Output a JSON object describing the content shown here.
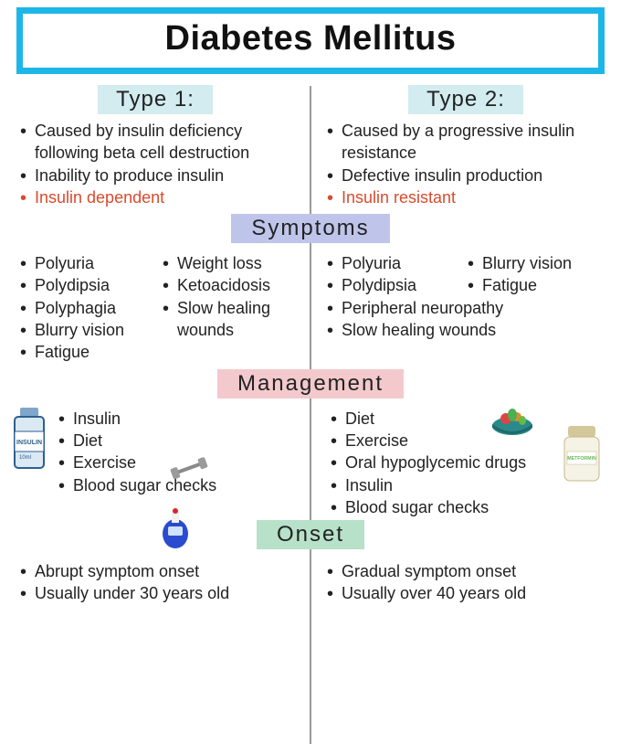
{
  "colors": {
    "title_border": "#1cb6e8",
    "title_text": "#111111",
    "divider": "#9a9a9a",
    "type_badge_bg": "#d2ecef",
    "symptoms_badge_bg": "#bfc5ea",
    "management_badge_bg": "#f3c9cd",
    "onset_badge_bg": "#b7e1c8",
    "badge_text": "#222222",
    "body_text": "#222222",
    "highlight_text": "#d94b2e"
  },
  "title": "Diabetes Mellitus",
  "type1_label": "Type 1:",
  "type2_label": "Type 2:",
  "section_symptoms": "Symptoms",
  "section_management": "Management",
  "section_onset": "Onset",
  "causes": {
    "type1": [
      {
        "text": "Caused by insulin deficiency following beta cell destruction",
        "hl": false
      },
      {
        "text": "Inability to produce insulin",
        "hl": false
      },
      {
        "text": "Insulin dependent",
        "hl": true
      }
    ],
    "type2": [
      {
        "text": "Caused by a progressive insulin resistance",
        "hl": false
      },
      {
        "text": "Defective insulin production",
        "hl": false
      },
      {
        "text": "Insulin resistant",
        "hl": true
      }
    ]
  },
  "symptoms": {
    "type1_a": [
      "Polyuria",
      "Polydipsia",
      "Polyphagia",
      "Blurry vision",
      "Fatigue"
    ],
    "type1_b": [
      "Weight loss",
      "Ketoacidosis",
      "Slow healing wounds"
    ],
    "type2_a": [
      "Polyuria",
      "Polydipsia"
    ],
    "type2_b": [
      "Blurry vision",
      "Fatigue"
    ],
    "type2_c": [
      "Peripheral neuropathy",
      "Slow healing wounds"
    ]
  },
  "management": {
    "type1": [
      "Insulin",
      "Diet",
      "Exercise",
      "Blood sugar checks"
    ],
    "type2": [
      "Diet",
      "Exercise",
      "Oral hypoglycemic drugs",
      "Insulin",
      "Blood sugar checks"
    ]
  },
  "onset": {
    "type1": [
      "Abrupt symptom onset",
      "Usually under 30 years old"
    ],
    "type2": [
      "Gradual symptom onset",
      "Usually over 40 years old"
    ]
  },
  "icons": {
    "insulin_label": "INSULIN",
    "insulin_vol": "10ml",
    "metformin_label": "METFORMIN"
  }
}
